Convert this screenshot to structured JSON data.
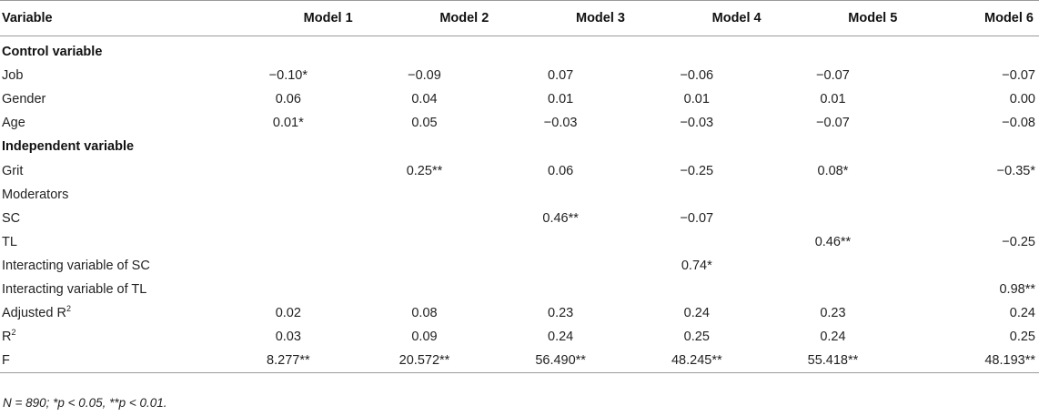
{
  "table": {
    "headers": [
      "Variable",
      "Model 1",
      "Model 2",
      "Model 3",
      "Model 4",
      "Model 5",
      "Model 6"
    ],
    "rows": [
      {
        "label": "Control variable",
        "section": true,
        "values": [
          "",
          "",
          "",
          "",
          "",
          ""
        ]
      },
      {
        "label": "Job",
        "values": [
          "−0.10*",
          "−0.09",
          "0.07",
          "−0.06",
          "−0.07",
          "−0.07"
        ]
      },
      {
        "label": "Gender",
        "values": [
          "0.06",
          "0.04",
          "0.01",
          "0.01",
          "0.01",
          "0.00"
        ]
      },
      {
        "label": "Age",
        "values": [
          "0.01*",
          "0.05",
          "−0.03",
          "−0.03",
          "−0.07",
          "−0.08"
        ]
      },
      {
        "label": "Independent variable",
        "section": true,
        "values": [
          "",
          "",
          "",
          "",
          "",
          ""
        ]
      },
      {
        "label": "Grit",
        "values": [
          "",
          "0.25**",
          "0.06",
          "−0.25",
          "0.08*",
          "−0.35*"
        ]
      },
      {
        "label": "Moderators",
        "values": [
          "",
          "",
          "",
          "",
          "",
          ""
        ]
      },
      {
        "label": "SC",
        "values": [
          "",
          "",
          "0.46**",
          "−0.07",
          "",
          ""
        ]
      },
      {
        "label": "TL",
        "values": [
          "",
          "",
          "",
          "",
          "0.46**",
          "−0.25"
        ]
      },
      {
        "label": "Interacting variable of SC",
        "values": [
          "",
          "",
          "",
          "0.74*",
          "",
          ""
        ]
      },
      {
        "label": "Interacting variable of TL",
        "values": [
          "",
          "",
          "",
          "",
          "",
          "0.98**"
        ]
      },
      {
        "label": "Adjusted R",
        "sup": "2",
        "values": [
          "0.02",
          "0.08",
          "0.23",
          "0.24",
          "0.23",
          "0.24"
        ]
      },
      {
        "label": "R",
        "sup": "2",
        "values": [
          "0.03",
          "0.09",
          "0.24",
          "0.25",
          "0.24",
          "0.25"
        ]
      },
      {
        "label": "F",
        "values": [
          "8.277**",
          "20.572**",
          "56.490**",
          "48.245**",
          "55.418**",
          "48.193**"
        ]
      }
    ]
  },
  "note": "N = 890; *p < 0.05, **p < 0.01."
}
